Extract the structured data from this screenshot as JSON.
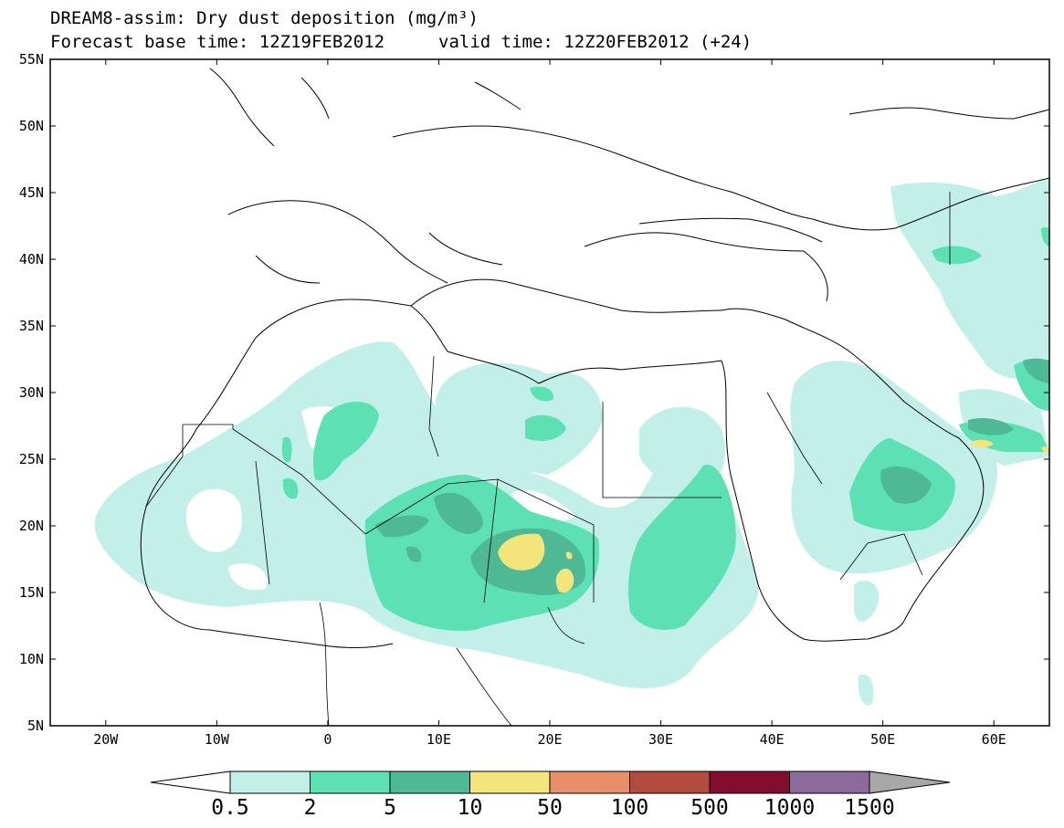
{
  "title": {
    "line1": "DREAM8-assim: Dry dust deposition (mg/m³)",
    "line2a": "Forecast base time: 12Z19FEB2012",
    "line2b": "valid time: 12Z20FEB2012 (+24)"
  },
  "map": {
    "lat_labels": [
      "55N",
      "50N",
      "45N",
      "40N",
      "35N",
      "30N",
      "25N",
      "20N",
      "15N",
      "10N",
      "5N"
    ],
    "lon_labels": [
      "20W",
      "10W",
      "0",
      "10E",
      "20E",
      "30E",
      "40E",
      "50E",
      "60E"
    ],
    "lon_range": [
      -25,
      65
    ],
    "lat_range": [
      5,
      55
    ]
  },
  "colorbar": {
    "labels": [
      "0.5",
      "2",
      "5",
      "10",
      "50",
      "100",
      "500",
      "1000",
      "1500"
    ],
    "colors": [
      "#c2efe8",
      "#5ce0b4",
      "#4fb894",
      "#f4e47c",
      "#e98e6a",
      "#b14c3f",
      "#830d2f",
      "#8d6a9c",
      "#a8a8a8"
    ]
  },
  "colors": {
    "level1": "#c2efe8",
    "level2": "#5ce0b4",
    "level3": "#4fb894",
    "level4": "#f4e47c"
  }
}
